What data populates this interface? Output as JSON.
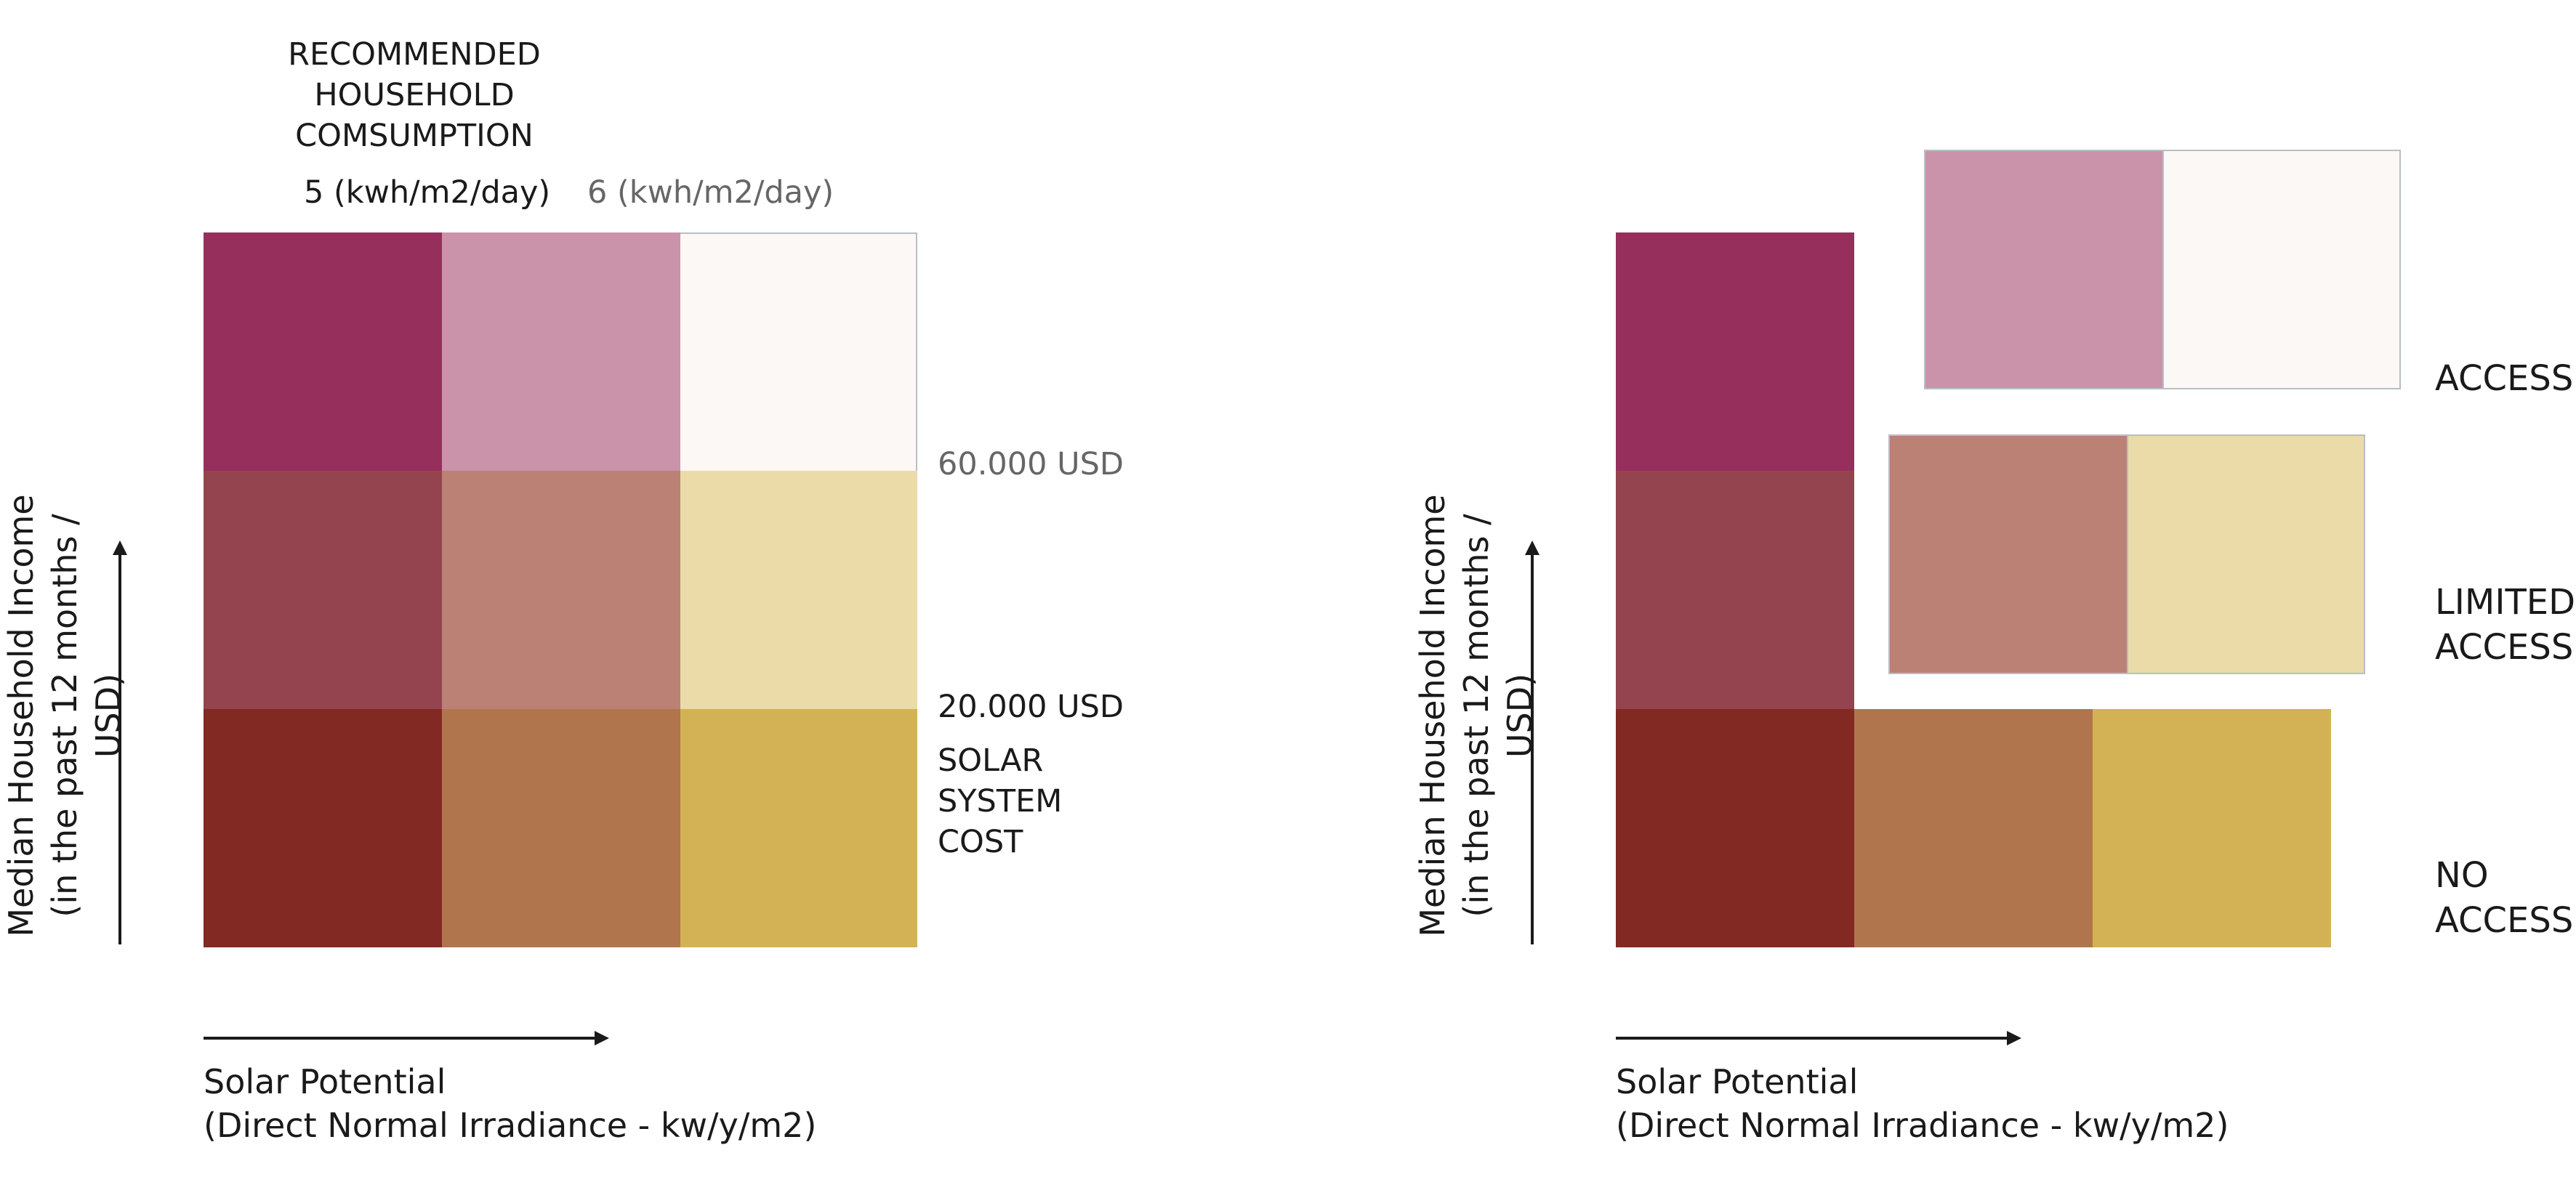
{
  "left_panel": {
    "recommended_line1": "RECOMMENDED",
    "recommended_line2": "HOUSEHOLD",
    "recommended_line3": "COMSUMPTION",
    "col_label_5": "5 (kwh/m2/day)",
    "col_label_6": "6 (kwh/m2/day)",
    "threshold_60k": "60.000 USD",
    "threshold_20k": "20.000 USD",
    "solar_cost_line1": "SOLAR",
    "solar_cost_line2": "SYSTEM",
    "solar_cost_line3": "COST",
    "y_label_line1": "Median Household Income",
    "y_label_line2": "(in the past 12 months / USD)",
    "x_label_line1": "Solar Potential",
    "x_label_line2": "(Direct Normal Irradiance - kw/y/m2)"
  },
  "right_panel": {
    "access": "ACCESS",
    "limited_line1": "LIMITED",
    "limited_line2": "ACCESS",
    "no_access_line1": "NO",
    "no_access_line2": "ACCESS",
    "y_label_line1": "Median Household Income",
    "y_label_line2": "(in the past 12 months / USD)",
    "x_label_line1": "Solar Potential",
    "x_label_line2": "(Direct Normal Irradiance - kw/y/m2)"
  },
  "colors": {
    "high_low_solar": "#962f5c",
    "high_mid_solar": "#ca93aa",
    "high_high_solar": "#fcf8f6",
    "mid_low_solar": "#94444e",
    "mid_mid_solar": "#bc8175",
    "mid_high_solar": "#eadba9",
    "low_low_solar": "#812922",
    "low_mid_solar": "#b0754d",
    "low_high_solar": "#d3b256"
  }
}
